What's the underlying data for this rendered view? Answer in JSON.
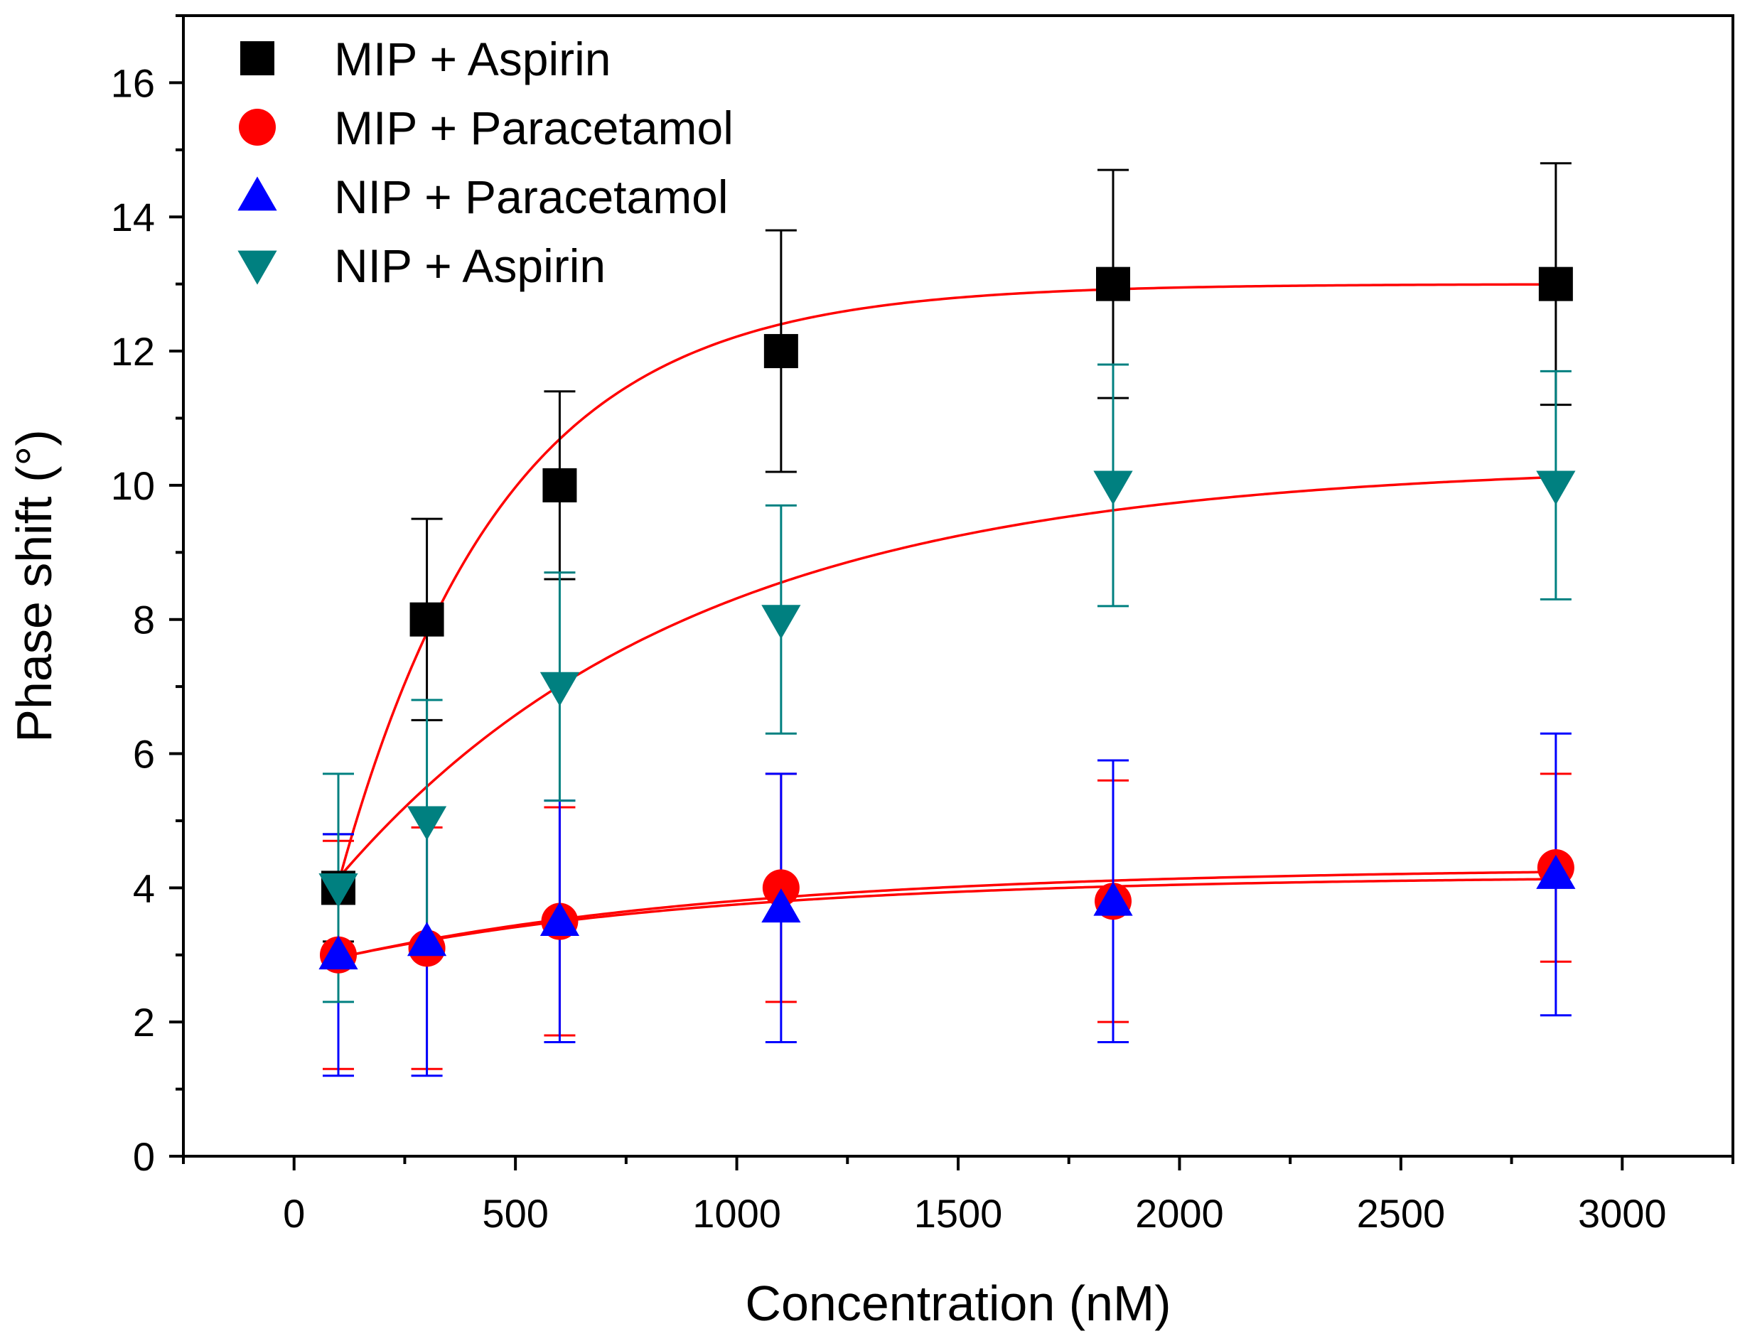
{
  "chart_data": {
    "type": "scatter",
    "title": "",
    "xlabel": "Concentration (nM)",
    "ylabel": "Phase shift (°)",
    "xlim": [
      -250,
      3250
    ],
    "ylim": [
      0,
      17
    ],
    "x_ticks": [
      0,
      500,
      1000,
      1500,
      2000,
      2500,
      3000
    ],
    "x_tick_labels": [
      "0",
      "500",
      "1000",
      "1500",
      "2000",
      "2500",
      "3000"
    ],
    "y_ticks": [
      0,
      2,
      4,
      6,
      8,
      10,
      12,
      14,
      16
    ],
    "y_tick_labels": [
      "0",
      "2",
      "4",
      "6",
      "8",
      "10",
      "12",
      "14",
      "16"
    ],
    "x": [
      100,
      300,
      600,
      1100,
      1850,
      2850
    ],
    "legend_position": "top-left",
    "series": [
      {
        "name": "MIP + Aspirin",
        "marker": "square",
        "color": "#000000",
        "values": [
          4.0,
          8.0,
          10.0,
          12.0,
          13.0,
          13.0
        ],
        "errors": [
          0.8,
          1.5,
          1.4,
          1.8,
          1.7,
          1.8
        ],
        "fit": {
          "y0": 13.0,
          "A": 11.7,
          "x0": 0,
          "t": 370,
          "color": "#ff0000"
        }
      },
      {
        "name": "MIP + Paracetamol",
        "marker": "circle",
        "color": "#ff0000",
        "values": [
          3.0,
          3.1,
          3.5,
          4.0,
          3.8,
          4.3
        ],
        "errors": [
          1.7,
          1.8,
          1.7,
          1.7,
          1.8,
          1.4
        ],
        "fit": {
          "y0": 4.3,
          "A": 1.5,
          "x0": 0,
          "t": 900,
          "color": "#ff0000"
        }
      },
      {
        "name": "NIP + Paracetamol",
        "marker": "triangle-up",
        "color": "#0000ff",
        "values": [
          3.0,
          3.2,
          3.5,
          3.7,
          3.8,
          4.2
        ],
        "errors": [
          1.8,
          2.0,
          1.8,
          2.0,
          2.1,
          2.1
        ],
        "fit": {
          "y0": 4.18,
          "A": 1.37,
          "x0": 0,
          "t": 860,
          "color": "#ff0000"
        }
      },
      {
        "name": "NIP + Aspirin",
        "marker": "triangle-down",
        "color": "#008080",
        "values": [
          4.0,
          5.0,
          7.0,
          8.0,
          10.0,
          10.0
        ],
        "errors": [
          1.7,
          1.8,
          1.7,
          1.7,
          1.8,
          1.7
        ],
        "fit": {
          "y0": 10.32,
          "A": 7.0,
          "x0": 0,
          "t": 800,
          "color": "#ff0000"
        }
      }
    ]
  }
}
